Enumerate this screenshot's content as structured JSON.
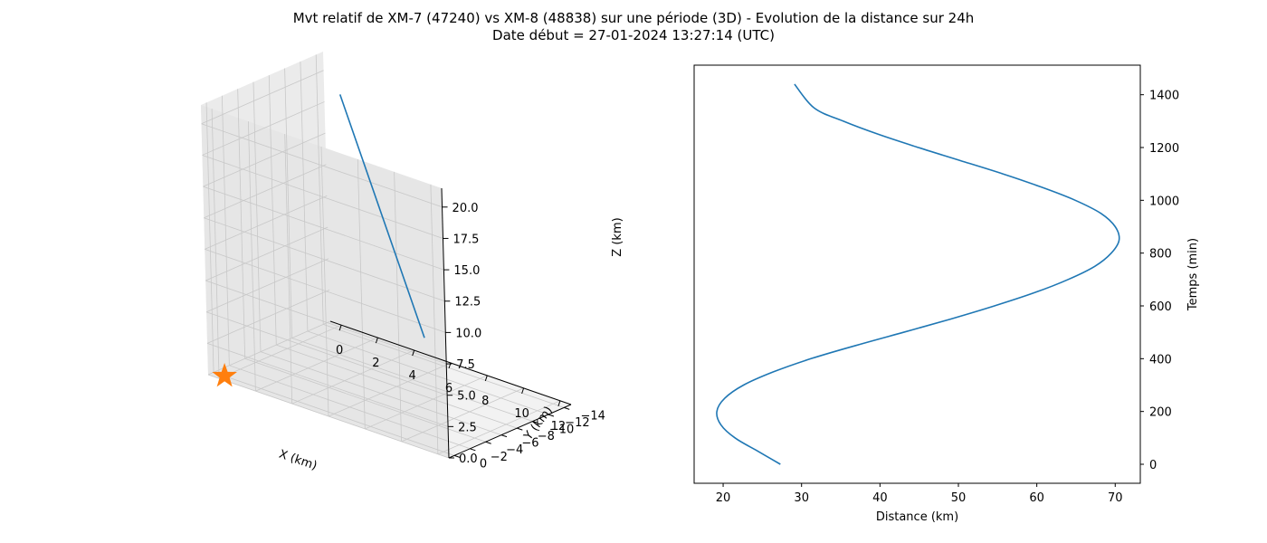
{
  "figure": {
    "title_line1": "Mvt relatif de XM-7 (47240) vs XM-8 (48838) sur une période (3D) - Evolution de la distance sur 24h",
    "title_line2": "Date début = 27-01-2024 13:27:14 (UTC)"
  },
  "colors": {
    "series": "#1f77b4",
    "marker": "#ff7f0e",
    "pane": "#f2f2f2",
    "grid": "#c8c8c8"
  },
  "chart_data": [
    {
      "type": "line3d",
      "xlabel": "X (km)",
      "ylabel": "Y (km)",
      "zlabel": "Z (km)",
      "x_ticks": [
        "0",
        "2",
        "4",
        "6",
        "8",
        "10",
        "12"
      ],
      "y_ticks": [
        "0",
        "−2",
        "−4",
        "−6",
        "−8",
        "−10",
        "−12",
        "−14"
      ],
      "z_ticks": [
        "0.0",
        "2.5",
        "5.0",
        "7.5",
        "10.0",
        "12.5",
        "15.0",
        "17.5",
        "20.0"
      ],
      "xlim": [
        -0.6,
        12.6
      ],
      "ylim": [
        -14.9,
        0.7
      ],
      "zlim": [
        0,
        21.5
      ],
      "grid": true,
      "series": [
        {
          "points": [
            [
              10.2,
              -2.1,
              7.6
            ],
            [
              1.5,
              -12.1,
              19.9
            ]
          ]
        }
      ],
      "marker": {
        "shape": "star",
        "point": [
          0,
          0,
          0
        ]
      }
    },
    {
      "type": "line",
      "xlabel": "Distance (km)",
      "ylabel": "Temps (min)",
      "x_ticks": [
        20,
        30,
        40,
        50,
        60,
        70
      ],
      "y_ticks": [
        0,
        200,
        400,
        600,
        800,
        1000,
        1200,
        1400
      ],
      "xlim": [
        16.3,
        73.2
      ],
      "ylim": [
        -72,
        1512
      ],
      "y_axis_side": "right",
      "grid": false,
      "series": [
        {
          "x": [
            27.3,
            24.4,
            21.5,
            19.7,
            19.2,
            20.2,
            22.6,
            26.4,
            31.2,
            36.9,
            43.0,
            49.0,
            54.6,
            59.7,
            64.0,
            67.4,
            69.5,
            70.5,
            70.0,
            68.2,
            64.9,
            60.6,
            55.7,
            50.3,
            44.9,
            39.8,
            35.3,
            31.6,
            29.1
          ],
          "y": [
            0,
            50,
            100,
            150,
            200,
            250,
            300,
            350,
            400,
            450,
            500,
            550,
            600,
            650,
            700,
            750,
            800,
            850,
            900,
            950,
            1000,
            1050,
            1100,
            1150,
            1200,
            1250,
            1300,
            1350,
            1440
          ]
        }
      ]
    }
  ]
}
